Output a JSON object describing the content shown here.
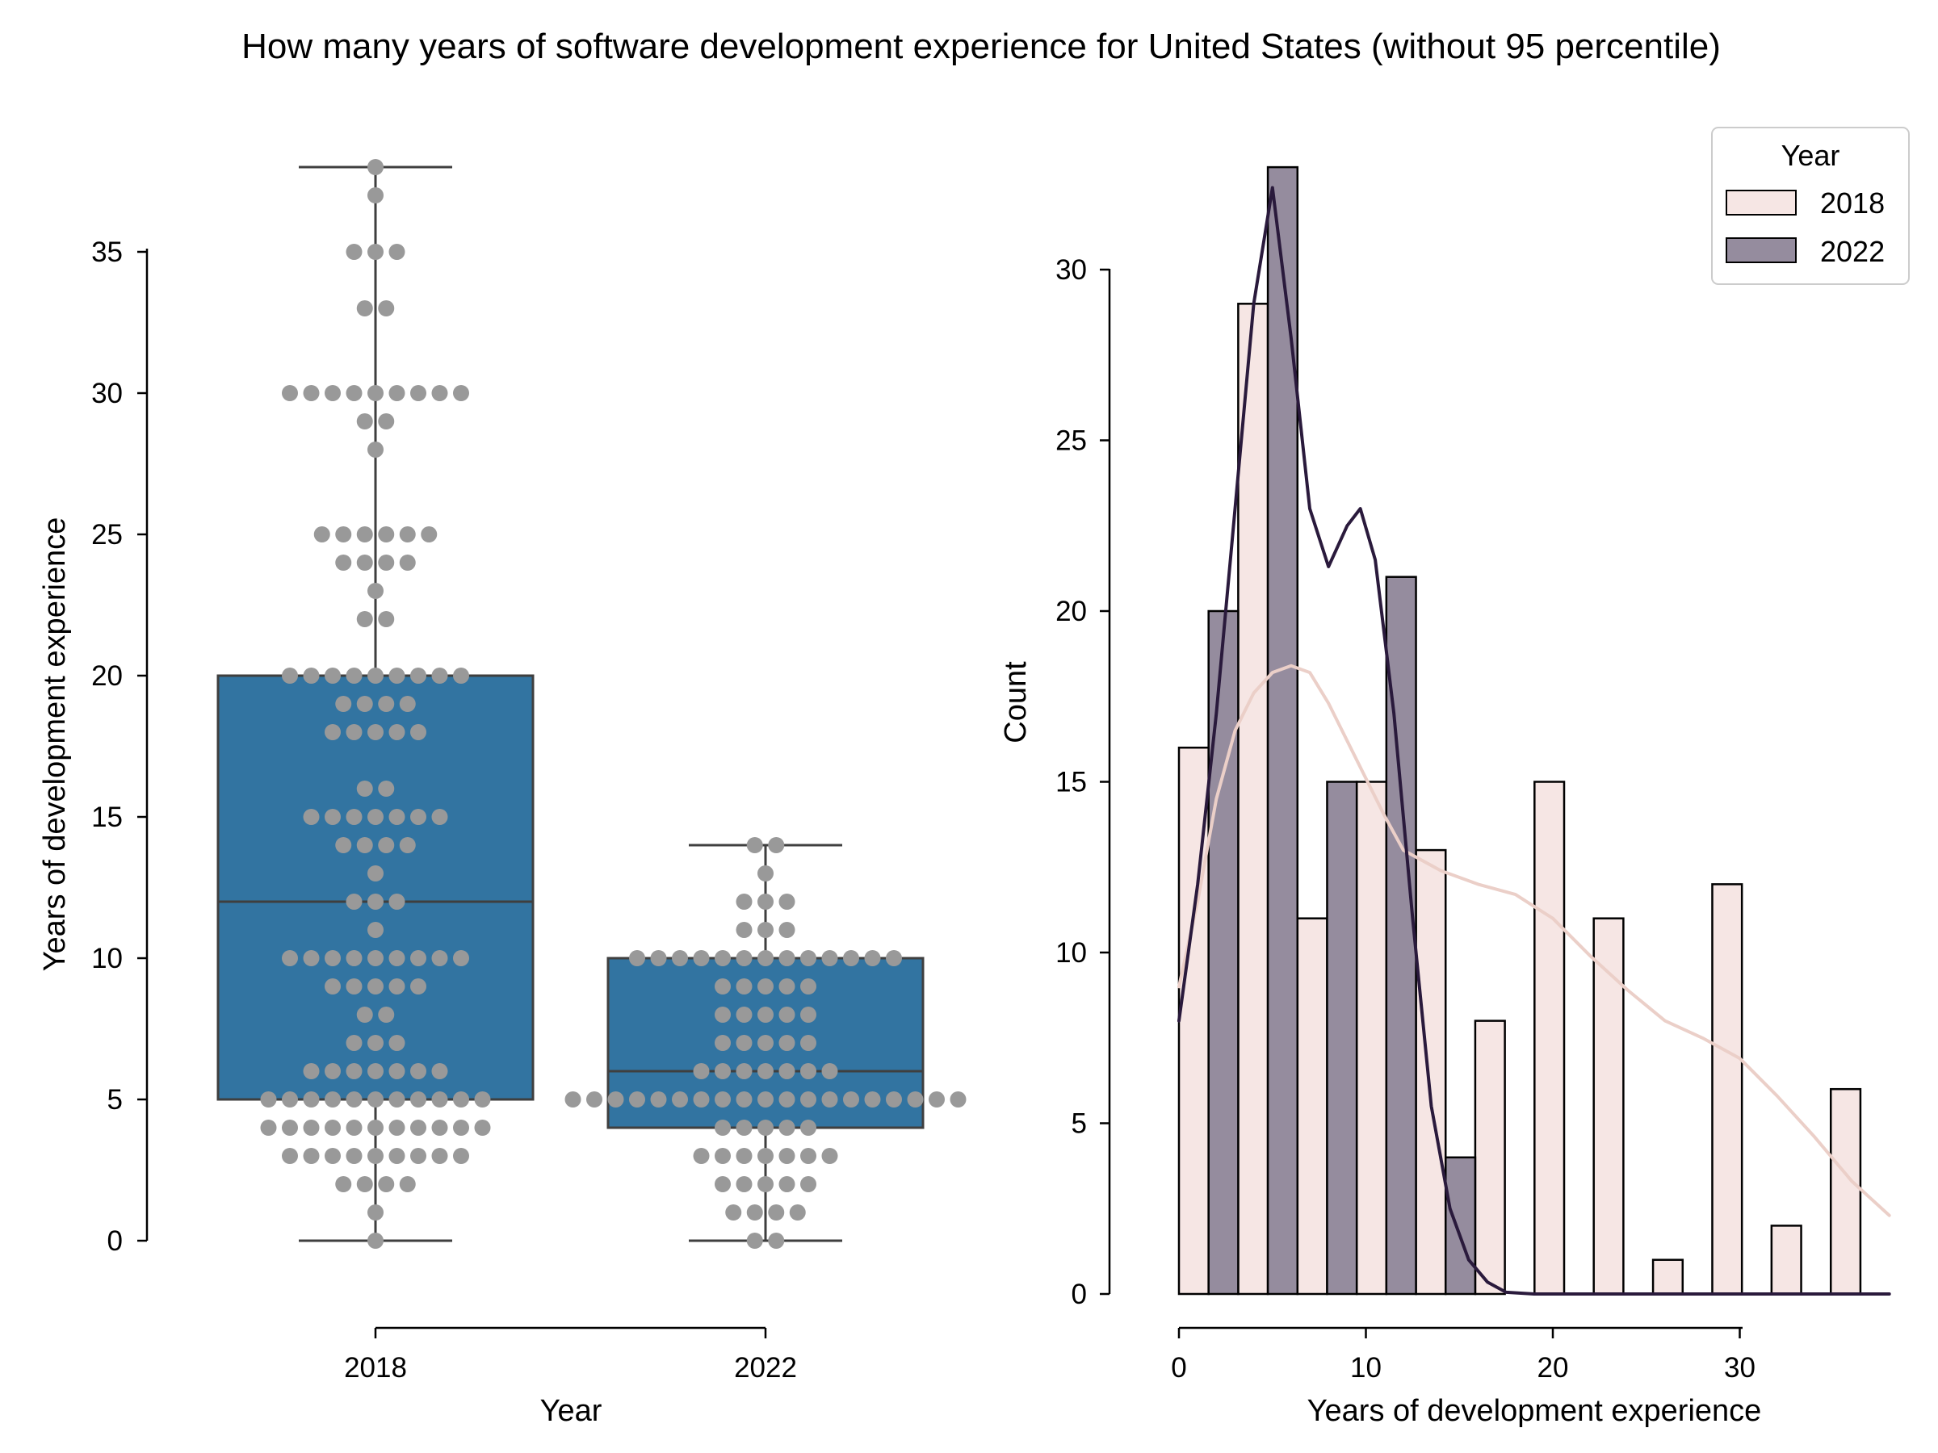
{
  "title": "How many years of software development experience for United States (without 95 percentile)",
  "chart_data": [
    {
      "type": "box",
      "xlabel": "Year",
      "ylabel": "Years of development experience",
      "categories": [
        "2018",
        "2022"
      ],
      "ylim": [
        0,
        38
      ],
      "yticks": [
        0,
        5,
        10,
        15,
        20,
        25,
        30,
        35
      ],
      "box_color": "#3274a1",
      "point_color": "#999999",
      "boxes": [
        {
          "name": "2018",
          "min": 0,
          "q1": 5,
          "median": 12,
          "q3": 20,
          "max": 38
        },
        {
          "name": "2022",
          "min": 0,
          "q1": 4,
          "median": 6,
          "q3": 10,
          "max": 14
        }
      ],
      "swarm": [
        {
          "name": "2018",
          "points": [
            {
              "y": 38,
              "n": 1
            },
            {
              "y": 37,
              "n": 1
            },
            {
              "y": 35,
              "n": 3
            },
            {
              "y": 33,
              "n": 2
            },
            {
              "y": 30,
              "n": 9
            },
            {
              "y": 29,
              "n": 2
            },
            {
              "y": 28,
              "n": 1
            },
            {
              "y": 25,
              "n": 6
            },
            {
              "y": 24,
              "n": 4
            },
            {
              "y": 23,
              "n": 1
            },
            {
              "y": 22,
              "n": 2
            },
            {
              "y": 20,
              "n": 9
            },
            {
              "y": 19,
              "n": 4
            },
            {
              "y": 18,
              "n": 5
            },
            {
              "y": 16,
              "n": 2
            },
            {
              "y": 15,
              "n": 7
            },
            {
              "y": 14,
              "n": 4
            },
            {
              "y": 13,
              "n": 1
            },
            {
              "y": 12,
              "n": 3
            },
            {
              "y": 11,
              "n": 1
            },
            {
              "y": 10,
              "n": 9
            },
            {
              "y": 9,
              "n": 5
            },
            {
              "y": 8,
              "n": 2
            },
            {
              "y": 7,
              "n": 3
            },
            {
              "y": 6,
              "n": 7
            },
            {
              "y": 5,
              "n": 11
            },
            {
              "y": 4,
              "n": 11
            },
            {
              "y": 3,
              "n": 9
            },
            {
              "y": 2,
              "n": 4
            },
            {
              "y": 1,
              "n": 1
            },
            {
              "y": 0,
              "n": 1
            }
          ]
        },
        {
          "name": "2022",
          "points": [
            {
              "y": 14,
              "n": 2
            },
            {
              "y": 13,
              "n": 1
            },
            {
              "y": 12,
              "n": 3
            },
            {
              "y": 11,
              "n": 3
            },
            {
              "y": 10,
              "n": 13
            },
            {
              "y": 9,
              "n": 5
            },
            {
              "y": 8,
              "n": 5
            },
            {
              "y": 7,
              "n": 5
            },
            {
              "y": 6,
              "n": 7
            },
            {
              "y": 5,
              "n": 19
            },
            {
              "y": 4,
              "n": 5
            },
            {
              "y": 3,
              "n": 7
            },
            {
              "y": 2,
              "n": 5
            },
            {
              "y": 1,
              "n": 4
            },
            {
              "y": 0,
              "n": 2
            }
          ]
        }
      ]
    },
    {
      "type": "histogram",
      "xlabel": "Years of development experience",
      "ylabel": "Count",
      "xlim": [
        0,
        38
      ],
      "ylim": [
        0,
        33
      ],
      "xticks": [
        0,
        10,
        20,
        30
      ],
      "yticks": [
        0,
        5,
        10,
        15,
        20,
        25,
        30
      ],
      "bin_width": 3.17,
      "legend": {
        "title": "Year",
        "position": "top-right",
        "entries": [
          "2018",
          "2022"
        ]
      },
      "series": [
        {
          "name": "2018",
          "color": "#f6e6e4",
          "kde_color": "#ebcfc8",
          "values": [
            16,
            29,
            11,
            15,
            13,
            8,
            15,
            11,
            1,
            12,
            2,
            6
          ]
        },
        {
          "name": "2022",
          "color": "#958c9e",
          "kde_color": "#2a1a3c",
          "values": [
            20,
            33,
            15,
            21,
            4,
            0,
            0,
            0,
            0,
            0,
            0,
            0
          ]
        }
      ],
      "kde": [
        {
          "name": "2018",
          "points": [
            [
              0,
              9
            ],
            [
              1,
              11.5
            ],
            [
              2,
              14.5
            ],
            [
              3,
              16.5
            ],
            [
              4,
              17.6
            ],
            [
              5,
              18.2
            ],
            [
              6,
              18.4
            ],
            [
              7,
              18.2
            ],
            [
              8,
              17.3
            ],
            [
              9,
              16.2
            ],
            [
              10,
              15.1
            ],
            [
              11,
              14.0
            ],
            [
              12,
              13.0
            ],
            [
              14,
              12.4
            ],
            [
              16,
              12.0
            ],
            [
              18,
              11.7
            ],
            [
              20,
              11.0
            ],
            [
              22,
              9.9
            ],
            [
              24,
              8.9
            ],
            [
              26,
              8.0
            ],
            [
              28,
              7.5
            ],
            [
              30,
              6.9
            ],
            [
              32,
              5.8
            ],
            [
              34,
              4.6
            ],
            [
              36,
              3.3
            ],
            [
              38,
              2.3
            ]
          ]
        },
        {
          "name": "2022",
          "points": [
            [
              0,
              8
            ],
            [
              1,
              12
            ],
            [
              2,
              17
            ],
            [
              3,
              23
            ],
            [
              4,
              29
            ],
            [
              5,
              32.4
            ],
            [
              6,
              28
            ],
            [
              7,
              23
            ],
            [
              8,
              21.3
            ],
            [
              9,
              22.5
            ],
            [
              9.7,
              23
            ],
            [
              10.5,
              21.5
            ],
            [
              11.5,
              17
            ],
            [
              12.5,
              11
            ],
            [
              13.5,
              5.5
            ],
            [
              14.5,
              2.5
            ],
            [
              15.5,
              1
            ],
            [
              16.5,
              0.35
            ],
            [
              17.5,
              0.05
            ],
            [
              19,
              0
            ],
            [
              38,
              0
            ]
          ]
        }
      ]
    }
  ]
}
